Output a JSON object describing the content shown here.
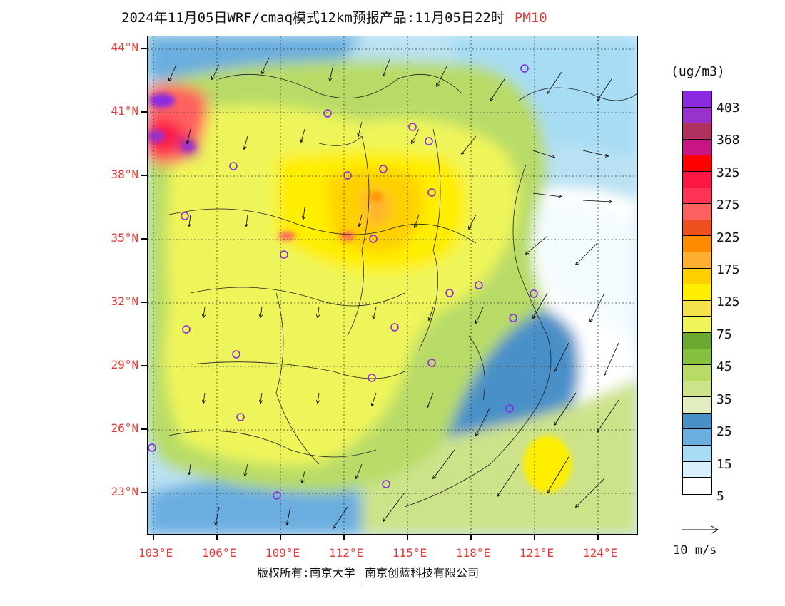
{
  "title": {
    "main": "2024年11月05日WRF/cmaq模式12km预报产品:11月05日22时",
    "pollutant": "PM10"
  },
  "axes": {
    "lat_labels": [
      "44°N",
      "41°N",
      "38°N",
      "35°N",
      "32°N",
      "29°N",
      "26°N",
      "23°N"
    ],
    "lon_labels": [
      "103°E",
      "106°E",
      "109°E",
      "112°E",
      "115°E",
      "118°E",
      "121°E",
      "124°E"
    ]
  },
  "legend": {
    "unit": "(ug/m3)",
    "colors": [
      "#8a2be2",
      "#9932cc",
      "#b03060",
      "#c71585",
      "#ff0000",
      "#ff1744",
      "#ff3355",
      "#ff6060",
      "#f05020",
      "#ff8c00",
      "#ffb030",
      "#ffd000",
      "#ffee00",
      "#f5e24a",
      "#eef55a",
      "#6aa832",
      "#86c040",
      "#b8db68",
      "#cde38a",
      "#e3eec0",
      "#4a90c8",
      "#6aaee0",
      "#a6dcf4",
      "#d8f0fb",
      "#ffffff"
    ],
    "labels": [
      "403",
      "368",
      "325",
      "275",
      "225",
      "175",
      "125",
      "75",
      "45",
      "35",
      "25",
      "15",
      "5"
    ]
  },
  "wind_vector": {
    "label": "10 m/s"
  },
  "copyright": {
    "left": "版权所有:南京大学",
    "right": "南京创蓝科技有限公司"
  }
}
